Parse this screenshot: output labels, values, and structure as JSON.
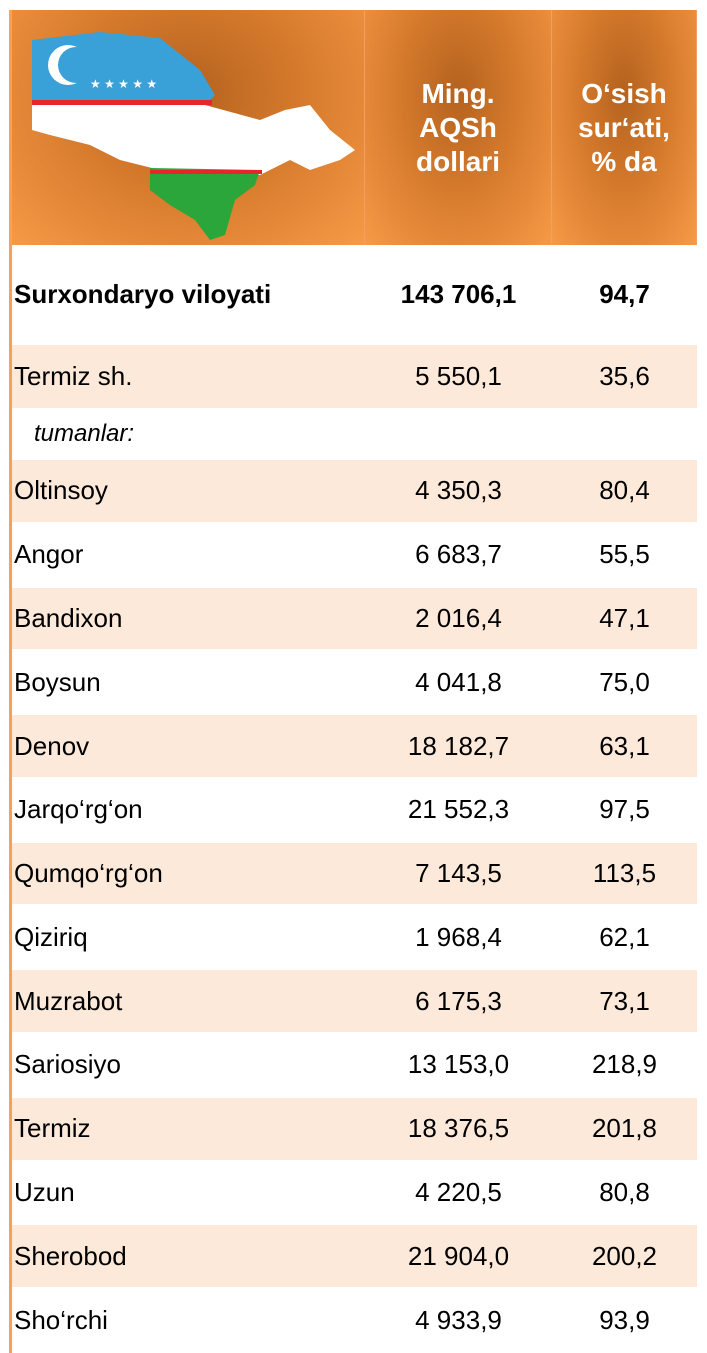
{
  "table": {
    "columns": [
      [
        "Ming.",
        "AQSh",
        "dollari"
      ],
      [
        "O‘sish",
        "sur‘ati,",
        "% da"
      ]
    ],
    "total": [
      "Surxondaryo viloyati",
      "143 706,1",
      "94,7"
    ],
    "city": [
      "Termiz sh.",
      "5 550,1",
      "35,6"
    ],
    "subheading": "tumanlar:",
    "rows": [
      [
        "Oltinsoy",
        "4 350,3",
        "80,4"
      ],
      [
        "Angor",
        "6 683,7",
        "55,5"
      ],
      [
        "Bandixon",
        "2 016,4",
        "47,1"
      ],
      [
        "Boysun",
        "4 041,8",
        "75,0"
      ],
      [
        "Denov",
        "18 182,7",
        "63,1"
      ],
      [
        "Jarqo‘rg‘on",
        "21 552,3",
        "97,5"
      ],
      [
        "Qumqo‘rg‘on",
        "7 143,5",
        "113,5"
      ],
      [
        "Qiziriq",
        "1 968,4",
        "62,1"
      ],
      [
        "Muzrabot",
        "6 175,3",
        "73,1"
      ],
      [
        "Sariosiyo",
        "13 153,0",
        "218,9"
      ],
      [
        "Termiz",
        "18 376,5",
        "201,8"
      ],
      [
        "Uzun",
        "4 220,5",
        "80,8"
      ],
      [
        "Sherobod",
        "21 904,0",
        "200,2"
      ],
      [
        "Sho‘rchi",
        "4 933,9",
        "93,9"
      ]
    ]
  }
}
